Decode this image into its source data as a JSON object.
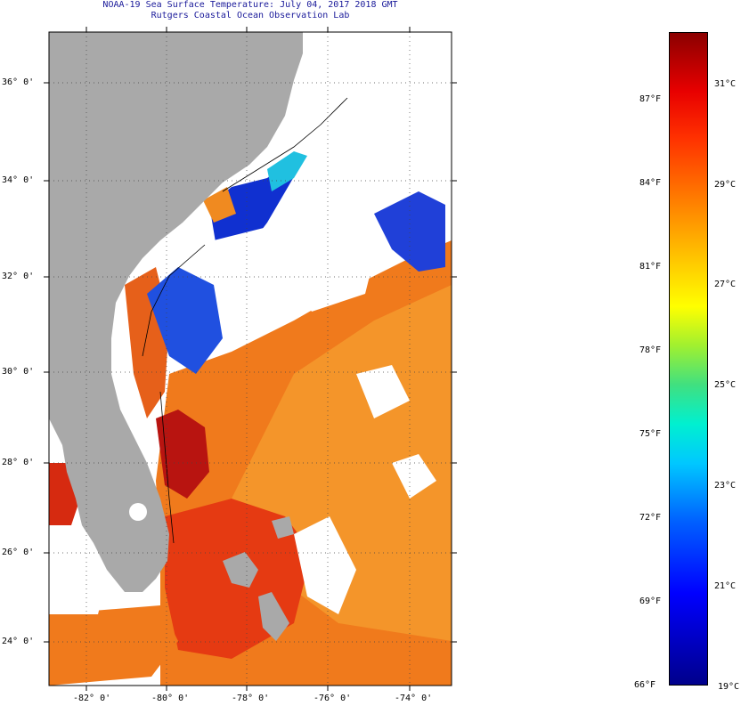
{
  "title_line1": "NOAA-19 Sea Surface Temperature:  July 04, 2017 2018 GMT",
  "title_line2": "Rutgers Coastal Ocean Observation Lab",
  "latitude_labels": [
    "36° 0'",
    "34° 0'",
    "32° 0'",
    "30° 0'",
    "28° 0'",
    "26° 0'",
    "24° 0'"
  ],
  "longitude_labels": [
    "-82° 0'",
    "-80° 0'",
    "-78° 0'",
    "-76° 0'",
    "-74° 0'"
  ],
  "colorbar": {
    "fahrenheit_labels": [
      "87°F",
      "84°F",
      "81°F",
      "78°F",
      "75°F",
      "72°F",
      "69°F",
      "66°F"
    ],
    "celsius_labels": [
      "31°C",
      "29°C",
      "27°C",
      "25°C",
      "23°C",
      "21°C",
      "19°C"
    ]
  },
  "colors": {
    "land": "#a9a9a9",
    "cloud": "#ffffff",
    "title": "#1a1a9a"
  }
}
